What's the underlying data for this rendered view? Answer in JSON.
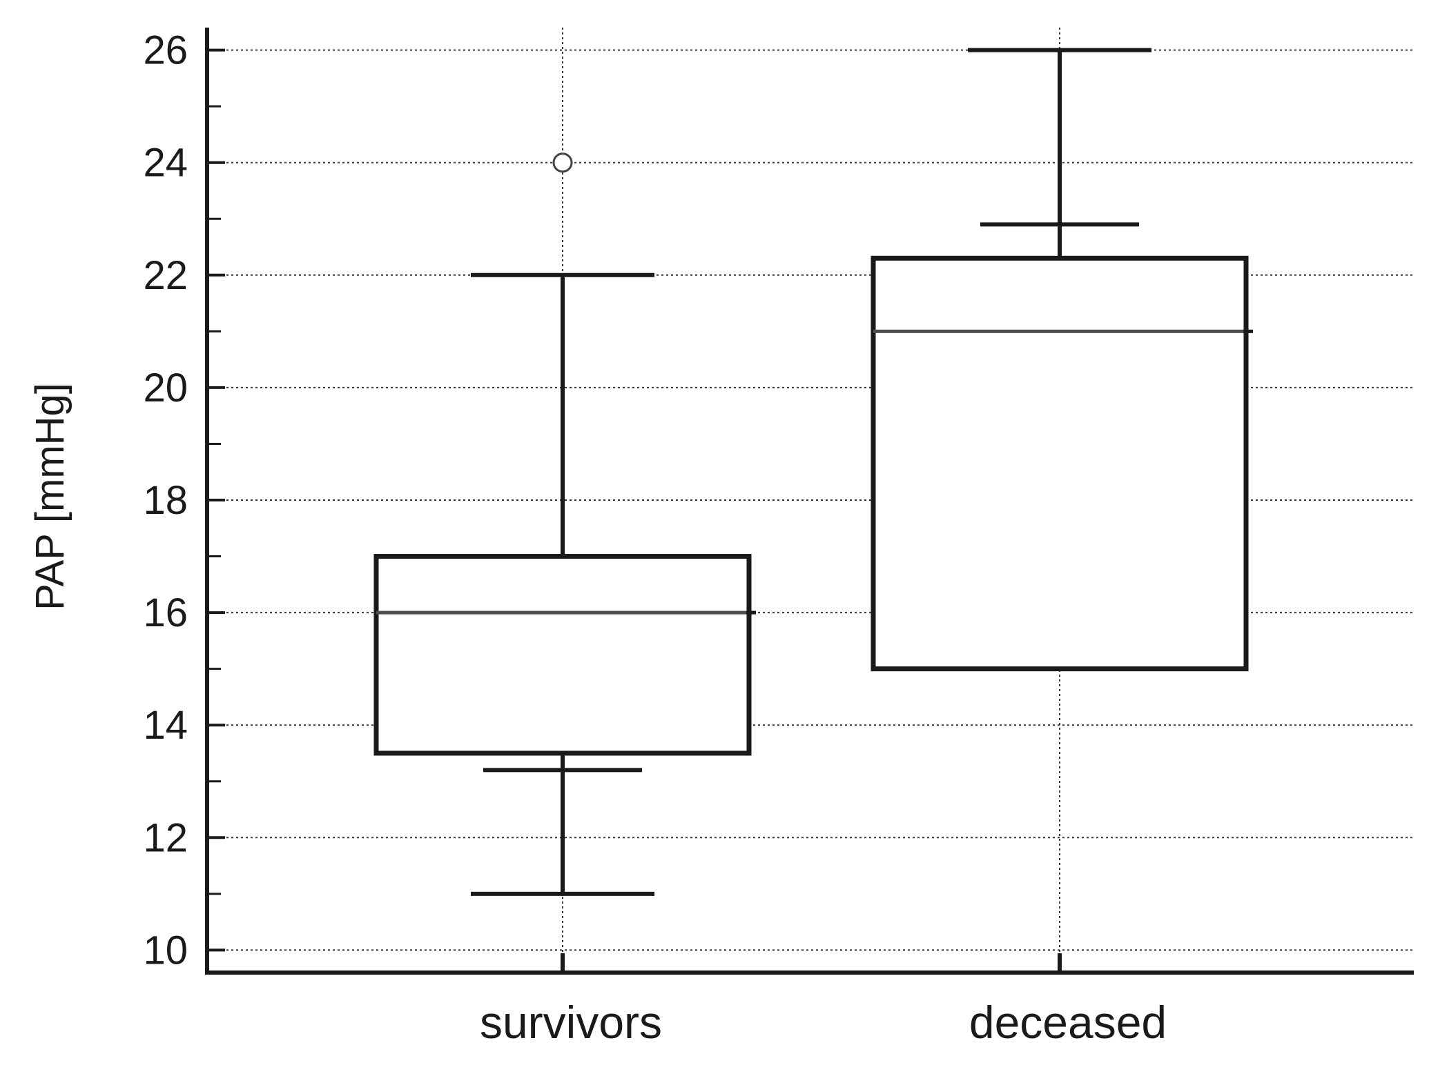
{
  "chart_data": {
    "type": "boxplot",
    "ylabel": "PAP [mmHg]",
    "xlabel": "",
    "ylim": [
      9.6,
      26.4
    ],
    "yticks": [
      10,
      12,
      14,
      16,
      18,
      20,
      22,
      24,
      26
    ],
    "yticks_minor": [
      11,
      13,
      15,
      17,
      19,
      21,
      23,
      25
    ],
    "grid": true,
    "categories": [
      "survivors",
      "deceased"
    ],
    "boxes": [
      {
        "category": "survivors",
        "whisker_low": 11,
        "whisker_low_inner": 13.2,
        "q1": 13.5,
        "median": 16,
        "q3": 17,
        "whisker_high": 22,
        "outliers": [
          24
        ]
      },
      {
        "category": "deceased",
        "whisker_low": 15,
        "whisker_low_inner": null,
        "q1": 15,
        "median": 21,
        "q3": 22.3,
        "whisker_high_inner": 22.9,
        "whisker_high": 26,
        "outliers": []
      }
    ],
    "colors": {
      "axis": "#1a1a1a",
      "box_line": "#1a1a1a",
      "median": "#4d4d4d",
      "grid": "#333333"
    }
  }
}
